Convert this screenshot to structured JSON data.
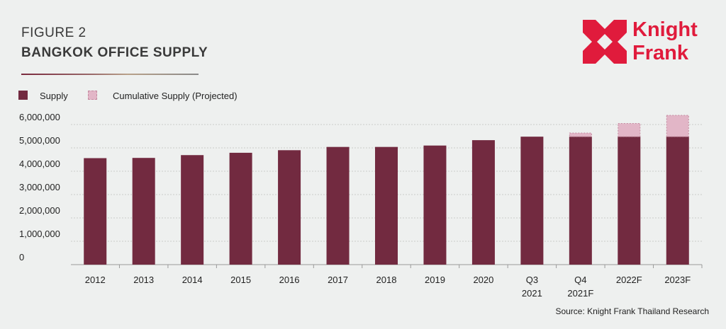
{
  "header": {
    "figure_number": "FIGURE 2",
    "title": "BANGKOK OFFICE SUPPLY"
  },
  "logo": {
    "line1": "Knight",
    "line2": "Frank",
    "color": "#e01b3c"
  },
  "legend": {
    "supply_label": "Supply",
    "projected_label": "Cumulative Supply (Projected)"
  },
  "colors": {
    "supply": "#722a40",
    "projected": "#e2b6c7",
    "projected_border": "#c48aa0",
    "grid": "#c9cbca",
    "axis": "#9a9a9a",
    "text": "#222222"
  },
  "source": "Source: Knight Frank Thailand Research",
  "chart_data": {
    "type": "bar",
    "stacked": true,
    "categories": [
      [
        "2012"
      ],
      [
        "2013"
      ],
      [
        "2014"
      ],
      [
        "2015"
      ],
      [
        "2016"
      ],
      [
        "2017"
      ],
      [
        "2018"
      ],
      [
        "2019"
      ],
      [
        "2020"
      ],
      [
        "Q3",
        "2021"
      ],
      [
        "Q4",
        "2021F"
      ],
      [
        "2022F"
      ],
      [
        "2023F"
      ]
    ],
    "series": [
      {
        "name": "Supply",
        "values": [
          4560000,
          4570000,
          4690000,
          4790000,
          4900000,
          5040000,
          5040000,
          5100000,
          5330000,
          5480000,
          5480000,
          5480000,
          5480000
        ]
      },
      {
        "name": "Cumulative Supply (Projected)",
        "values": [
          0,
          0,
          0,
          0,
          0,
          0,
          0,
          0,
          0,
          0,
          170000,
          580000,
          930000
        ]
      }
    ],
    "y_ticks": [
      "0",
      "1,000,000",
      "2,000,000",
      "3,000,000",
      "4,000,000",
      "5,000,000",
      "6,000,000"
    ],
    "ylim": [
      0,
      6000000
    ],
    "grid": true,
    "legend_position": "top-left"
  }
}
